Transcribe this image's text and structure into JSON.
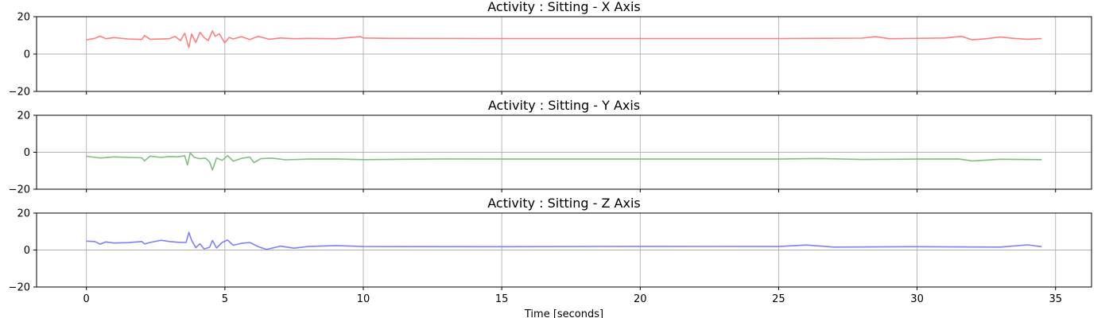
{
  "chart_data": [
    {
      "type": "line",
      "title": "Activity : Sitting - X Axis",
      "color": "#ff7f7f",
      "ylim": [
        -20,
        20
      ],
      "xlim": [
        -1.8,
        36.3
      ],
      "yticks": [
        -20,
        0,
        20
      ],
      "xticks": [
        0,
        5,
        10,
        15,
        20,
        25,
        30,
        35
      ],
      "grid": true,
      "x": [
        0,
        0.3,
        0.5,
        0.7,
        1,
        1.5,
        2,
        2.1,
        2.3,
        3,
        3.2,
        3.4,
        3.55,
        3.7,
        3.8,
        3.95,
        4.1,
        4.25,
        4.4,
        4.55,
        4.65,
        4.8,
        5,
        5.15,
        5.3,
        5.6,
        5.9,
        6.2,
        6.6,
        7,
        7.5,
        8,
        9,
        9.9,
        10,
        11,
        15,
        20,
        25,
        28,
        28.5,
        29,
        31,
        31.6,
        32,
        32.5,
        33,
        33.5,
        34,
        34.5
      ],
      "values": [
        7.6,
        8.4,
        9.6,
        8.2,
        8.8,
        8.1,
        7.8,
        9.9,
        7.9,
        8.2,
        9.5,
        7.2,
        11.2,
        3.5,
        10.8,
        6.2,
        11.6,
        8.9,
        7.2,
        12.4,
        9.5,
        10.8,
        6.0,
        8.9,
        8.1,
        9.3,
        7.8,
        9.5,
        7.9,
        8.6,
        8.2,
        8.4,
        8.2,
        9.3,
        8.6,
        8.4,
        8.3,
        8.3,
        8.3,
        8.5,
        9.3,
        8.2,
        8.6,
        9.5,
        7.6,
        8.2,
        9.1,
        8.4,
        7.9,
        8.3
      ]
    },
    {
      "type": "line",
      "title": "Activity : Sitting - Y Axis",
      "color": "#7fbf7f",
      "ylim": [
        -20,
        20
      ],
      "xlim": [
        -1.8,
        36.3
      ],
      "yticks": [
        -20,
        0,
        20
      ],
      "xticks": [
        0,
        5,
        10,
        15,
        20,
        25,
        30,
        35
      ],
      "grid": true,
      "x": [
        0,
        0.2,
        0.5,
        0.7,
        1,
        1.5,
        2,
        2.1,
        2.3,
        2.7,
        3,
        3.3,
        3.55,
        3.65,
        3.75,
        3.9,
        4.1,
        4.3,
        4.45,
        4.55,
        4.7,
        4.9,
        5.1,
        5.3,
        5.6,
        5.9,
        6.05,
        6.3,
        6.7,
        7.2,
        8,
        9,
        10,
        13,
        15,
        20,
        25,
        26.5,
        28,
        30,
        31.5,
        32,
        33,
        34.5
      ],
      "values": [
        -2.2,
        -2.6,
        -3.1,
        -2.9,
        -2.5,
        -2.8,
        -3.0,
        -4.6,
        -2.1,
        -2.8,
        -2.3,
        -2.5,
        -1.9,
        -6.9,
        -0.3,
        -2.8,
        -3.5,
        -3.2,
        -5.3,
        -9.6,
        -3.1,
        -4.4,
        -1.8,
        -4.8,
        -3.3,
        -2.6,
        -5.6,
        -3.5,
        -3.2,
        -4.1,
        -3.7,
        -3.6,
        -4.0,
        -3.6,
        -3.7,
        -3.7,
        -3.7,
        -3.4,
        -3.9,
        -3.7,
        -3.6,
        -4.7,
        -3.8,
        -4.0
      ]
    },
    {
      "type": "line",
      "title": "Activity : Sitting - Z Axis",
      "color": "#7f7fff",
      "ylim": [
        -20,
        20
      ],
      "xlim": [
        -1.8,
        36.3
      ],
      "yticks": [
        -20,
        0,
        20
      ],
      "xticks": [
        0,
        5,
        10,
        15,
        20,
        25,
        30,
        35
      ],
      "grid": true,
      "xlabel": "Time [seconds]",
      "x": [
        0,
        0.3,
        0.5,
        0.7,
        1,
        1.5,
        2,
        2.1,
        2.3,
        2.7,
        3,
        3.3,
        3.6,
        3.7,
        3.8,
        3.95,
        4.1,
        4.25,
        4.45,
        4.55,
        4.7,
        4.9,
        5.1,
        5.3,
        5.6,
        5.9,
        6.2,
        6.5,
        7,
        7.5,
        8,
        9,
        10,
        15,
        20,
        25,
        26,
        27,
        30,
        33,
        34,
        34.5
      ],
      "values": [
        4.8,
        4.6,
        3.2,
        4.4,
        3.8,
        4.0,
        4.6,
        3.3,
        4.1,
        5.3,
        4.6,
        4.2,
        4.1,
        9.6,
        5.3,
        1.3,
        3.4,
        0.6,
        1.5,
        5.2,
        1.1,
        4.1,
        5.4,
        2.6,
        3.6,
        4.1,
        1.9,
        0.3,
        2.1,
        1.0,
        1.9,
        2.4,
        1.9,
        1.8,
        2.0,
        1.9,
        2.7,
        1.6,
        1.8,
        1.6,
        2.8,
        1.8
      ]
    }
  ]
}
